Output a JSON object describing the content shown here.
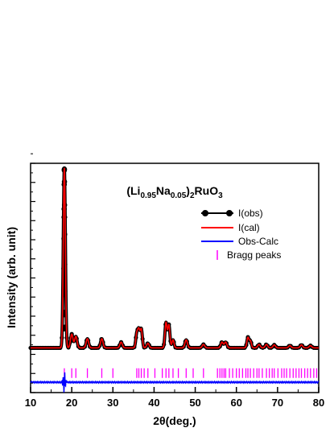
{
  "chart_data": {
    "type": "line",
    "title_parts": {
      "open": "(Li",
      "sub1": "0.95",
      "mid": "Na",
      "sub2": "0.05",
      "close": ")",
      "sub3": "2",
      "tail": "RuO",
      "sub4": "3"
    },
    "xlabel": "2θ(deg.)",
    "ylabel": "Intensity (arb. unit)",
    "xlim": [
      10,
      80
    ],
    "ylim": [
      0,
      100
    ],
    "x_ticks": [
      10,
      20,
      30,
      40,
      50,
      60,
      70,
      80
    ],
    "y_tick_labels_shown": false,
    "legend_position": "right",
    "series": [
      {
        "name": "I(obs)",
        "color": "#000000",
        "style": "line-circles"
      },
      {
        "name": "I(cal)",
        "color": "#ff0000",
        "style": "line"
      },
      {
        "name": "Obs-Calc",
        "color": "#0000ff",
        "style": "line"
      },
      {
        "name": "Bragg peaks",
        "color": "#ff00ff",
        "style": "ticks"
      }
    ],
    "baseline": 19.5,
    "peaks": [
      {
        "x": 18.2,
        "y": 98,
        "w": 0.25
      },
      {
        "x": 20.0,
        "y": 25.5,
        "w": 0.3
      },
      {
        "x": 21.0,
        "y": 24.5,
        "w": 0.3
      },
      {
        "x": 23.8,
        "y": 23.5,
        "w": 0.3
      },
      {
        "x": 27.3,
        "y": 23.5,
        "w": 0.3
      },
      {
        "x": 32.0,
        "y": 22,
        "w": 0.3
      },
      {
        "x": 35.8,
        "y": 25.5,
        "w": 0.25
      },
      {
        "x": 36.3,
        "y": 27,
        "w": 0.25
      },
      {
        "x": 36.9,
        "y": 27.5,
        "w": 0.25
      },
      {
        "x": 38.5,
        "y": 21.5,
        "w": 0.3
      },
      {
        "x": 42.9,
        "y": 30.5,
        "w": 0.25
      },
      {
        "x": 43.6,
        "y": 29.5,
        "w": 0.25
      },
      {
        "x": 44.6,
        "y": 23,
        "w": 0.25
      },
      {
        "x": 47.8,
        "y": 23,
        "w": 0.3
      },
      {
        "x": 52.0,
        "y": 21,
        "w": 0.3
      },
      {
        "x": 56.5,
        "y": 22,
        "w": 0.3
      },
      {
        "x": 57.4,
        "y": 22,
        "w": 0.3
      },
      {
        "x": 62.8,
        "y": 24,
        "w": 0.25
      },
      {
        "x": 63.4,
        "y": 22.5,
        "w": 0.25
      },
      {
        "x": 65.5,
        "y": 21,
        "w": 0.3
      },
      {
        "x": 67.3,
        "y": 21,
        "w": 0.3
      },
      {
        "x": 69.2,
        "y": 20.8,
        "w": 0.3
      },
      {
        "x": 73.0,
        "y": 20.5,
        "w": 0.3
      },
      {
        "x": 75.8,
        "y": 20.8,
        "w": 0.3
      },
      {
        "x": 78.0,
        "y": 20.5,
        "w": 0.3
      }
    ],
    "bragg_positions": [
      18.2,
      20.0,
      21.0,
      23.8,
      27.3,
      30.0,
      35.8,
      36.3,
      36.9,
      37.6,
      38.5,
      40.2,
      42.0,
      42.9,
      43.6,
      44.6,
      45.9,
      47.8,
      49.5,
      52.0,
      55.4,
      56.0,
      56.5,
      57.0,
      57.4,
      58.3,
      59.1,
      60.0,
      60.7,
      61.5,
      62.3,
      62.8,
      63.4,
      64.2,
      65.0,
      65.5,
      66.3,
      67.3,
      68.0,
      68.7,
      69.2,
      70.1,
      71.0,
      71.6,
      72.2,
      73.0,
      73.8,
      74.5,
      75.2,
      75.8,
      76.6,
      77.3,
      78.0,
      78.8,
      79.5
    ],
    "bragg_level": 8.5,
    "diff_level": 4.5
  }
}
